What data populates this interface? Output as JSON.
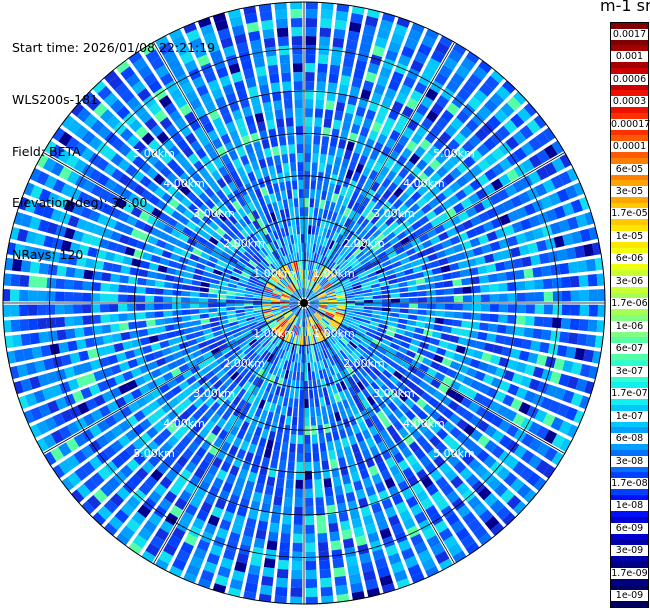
{
  "info": {
    "start_time": "Start time: 2026/01/08 22:21:19",
    "instrument": "WLS200s-181",
    "field": "Field: BETA",
    "elevation": "Elevation(deg): 35.00",
    "nrays": "NRays: 120"
  },
  "colorbar": {
    "title": "m-1 sr-1",
    "labels": [
      "0.0017",
      "0.001",
      "0.0006",
      "0.0003",
      "0.00017",
      "0.0001",
      "6e-05",
      "3e-05",
      "1.7e-05",
      "1e-05",
      "6e-06",
      "3e-06",
      "1.7e-06",
      "1e-06",
      "6e-07",
      "3e-07",
      "1.7e-07",
      "1e-07",
      "6e-08",
      "3e-08",
      "1.7e-08",
      "1e-08",
      "6e-09",
      "3e-09",
      "1.7e-09",
      "1e-09"
    ],
    "colors": [
      "#800000",
      "#a50000",
      "#cc0000",
      "#f01000",
      "#ff3000",
      "#ff5a00",
      "#ff7f00",
      "#ffa500",
      "#ffc800",
      "#ffe600",
      "#f0ff10",
      "#c8ff30",
      "#a5ff55",
      "#80ff80",
      "#55ffa5",
      "#30ffcc",
      "#10f0f0",
      "#00c8ff",
      "#00a0ff",
      "#0070ff",
      "#0040ff",
      "#0010ff",
      "#0000d0",
      "#0000a8",
      "#000080",
      "#000060"
    ]
  },
  "chart_data": {
    "type": "heatmap",
    "subtype": "polar-ppi",
    "field": "BETA",
    "units": "m-1 sr-1",
    "elevation_deg": 35.0,
    "n_rays": 120,
    "color_scale": "log",
    "range_ring_labels": [
      "1.00km",
      "2.00km",
      "3.00km",
      "4.00km",
      "5.00km"
    ],
    "range_rings_km": [
      1,
      2,
      3,
      4,
      5
    ],
    "max_range_km": 7.1,
    "near_field_ring_km": [
      0.3,
      0.8
    ],
    "near_field_beta": "3e-05 to 1.7e-05",
    "background_beta": "1e-07 to 1e-08",
    "colorbar_min": "1e-09",
    "colorbar_max": "0.0017"
  }
}
